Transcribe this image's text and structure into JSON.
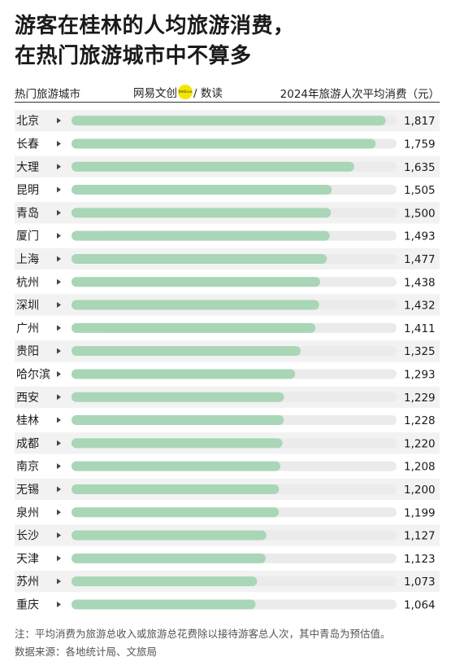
{
  "title": {
    "line1": "游客在桂林的人均旅游消费，",
    "line2": "在热门旅游城市中不算多"
  },
  "header": {
    "left": "热门旅游城市",
    "brand_text": "网易文创",
    "brand_logo_text": "NetEase",
    "brand_suffix": "/ 数读",
    "right": "2024年旅游人次平均消费（元）"
  },
  "note": "注：平均消费为旅游总收入或旅游总花费除以接待游客总人次，其中青岛为预估值。",
  "source": "数据来源：各地统计局、文旅局",
  "colors": {
    "bar_fill": "#a9d6b6",
    "bar_track": "#ebebeb",
    "row_alt": "#f2f2f2",
    "text": "#1a1a1a"
  },
  "chart_data": {
    "type": "bar",
    "orientation": "horizontal",
    "categories": [
      "北京",
      "长春",
      "大理",
      "昆明",
      "青岛",
      "厦门",
      "上海",
      "杭州",
      "深圳",
      "广州",
      "贵阳",
      "哈尔滨",
      "西安",
      "桂林",
      "成都",
      "南京",
      "无锡",
      "泉州",
      "长沙",
      "天津",
      "苏州",
      "重庆"
    ],
    "values": [
      1817,
      1759,
      1635,
      1505,
      1500,
      1493,
      1477,
      1438,
      1432,
      1411,
      1325,
      1293,
      1229,
      1228,
      1220,
      1208,
      1200,
      1199,
      1127,
      1123,
      1073,
      1064
    ],
    "value_labels": [
      "1,817",
      "1,759",
      "1,635",
      "1,505",
      "1,500",
      "1,493",
      "1,477",
      "1,438",
      "1,432",
      "1,411",
      "1,325",
      "1,293",
      "1,229",
      "1,228",
      "1,220",
      "1,208",
      "1,200",
      "1,199",
      "1,127",
      "1,123",
      "1,073",
      "1,064"
    ],
    "xlim": [
      0,
      1880
    ],
    "grid": false,
    "legend": "none"
  }
}
